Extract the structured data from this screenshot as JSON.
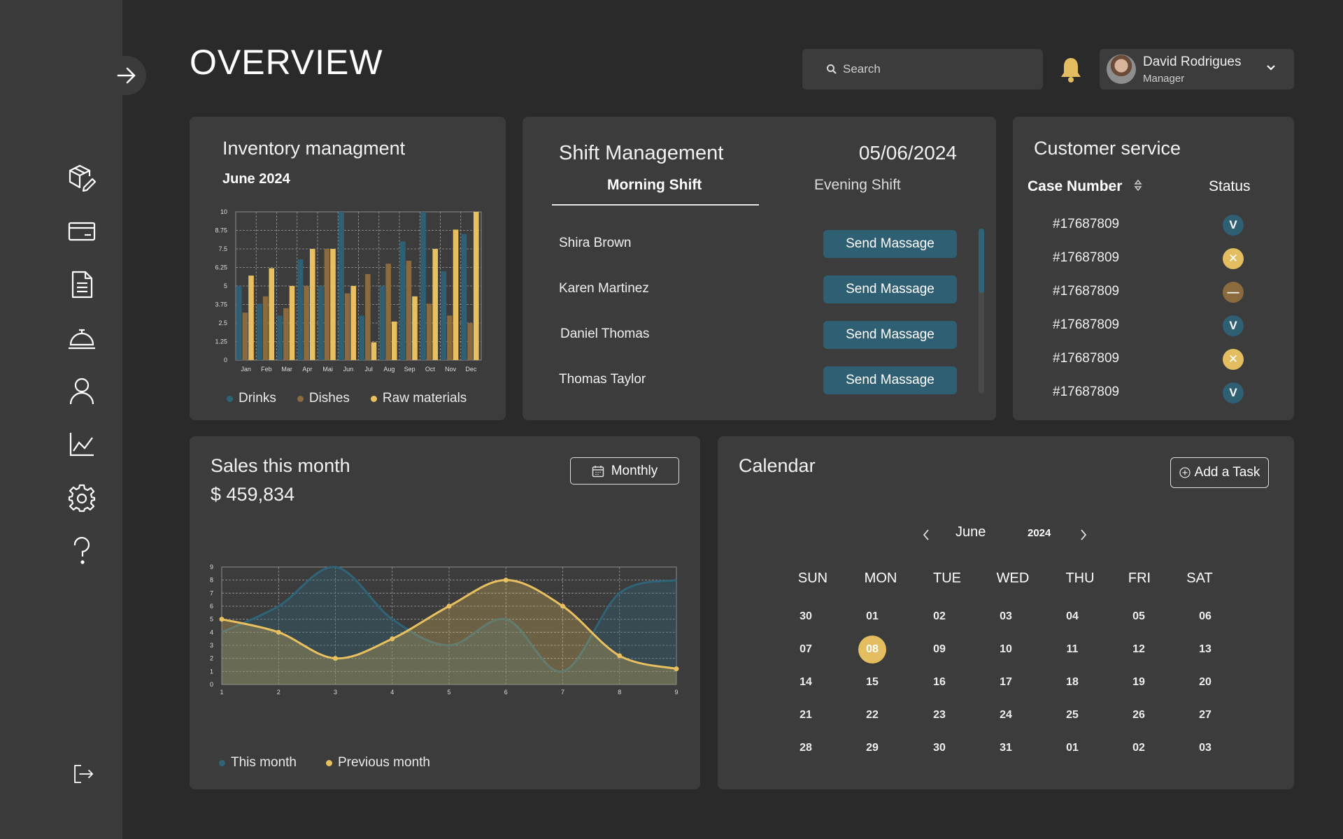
{
  "header": {
    "title": "OVERVIEW",
    "search_placeholder": "Search",
    "user": {
      "name": "David Rodrigues",
      "role": "Manager"
    }
  },
  "sidebar": {
    "items": [
      "inventory-icon",
      "card-icon",
      "document-icon",
      "service-bell-icon",
      "user-icon",
      "chart-icon",
      "settings-icon",
      "help-icon"
    ],
    "logout": "logout-icon"
  },
  "colors": {
    "drinks": "#2f5f73",
    "dishes": "#8b6a3e",
    "raw": "#e8c05f",
    "accent": "#e3bd5f",
    "teal": "#2f6478"
  },
  "inventory": {
    "title": "Inventory managment",
    "subtitle": "June 2024",
    "legend": [
      "Drinks",
      "Dishes",
      "Raw materials"
    ]
  },
  "shift": {
    "title": "Shift Management",
    "date": "05/06/2024",
    "tabs": [
      "Morning Shift",
      "Evening Shift"
    ],
    "staff": [
      {
        "name": "Shira Brown",
        "action": "Send Massage"
      },
      {
        "name": "Karen Martinez",
        "action": "Send Massage"
      },
      {
        "name": "Daniel Thomas",
        "action": "Send Massage"
      },
      {
        "name": "Thomas Taylor",
        "action": "Send Massage"
      }
    ]
  },
  "customer_service": {
    "title": "Customer service",
    "columns": [
      "Case Number",
      "Status"
    ],
    "cases": [
      {
        "number": "#17687809",
        "status": "done"
      },
      {
        "number": "#17687809",
        "status": "rejected"
      },
      {
        "number": "#17687809",
        "status": "pending"
      },
      {
        "number": "#17687809",
        "status": "done"
      },
      {
        "number": "#17687809",
        "status": "rejected"
      },
      {
        "number": "#17687809",
        "status": "done"
      }
    ],
    "status_glyphs": {
      "done": "V",
      "rejected": "✕",
      "pending": "—"
    }
  },
  "sales": {
    "title": "Sales this month",
    "amount": "$ 459,834",
    "period_button": "Monthly",
    "legend": [
      "This month",
      "Previous month"
    ]
  },
  "calendar": {
    "title": "Calendar",
    "add_task": "Add a Task",
    "month": "June",
    "year": "2024",
    "weekdays": [
      "SUN",
      "MON",
      "TUE",
      "WED",
      "THU",
      "FRI",
      "SAT"
    ],
    "weeks": [
      [
        "30",
        "01",
        "02",
        "03",
        "04",
        "05",
        "06"
      ],
      [
        "07",
        "08",
        "09",
        "10",
        "11",
        "12",
        "13"
      ],
      [
        "14",
        "15",
        "16",
        "17",
        "18",
        "19",
        "20"
      ],
      [
        "21",
        "22",
        "23",
        "24",
        "25",
        "26",
        "27"
      ],
      [
        "28",
        "29",
        "30",
        "31",
        "01",
        "02",
        "03"
      ]
    ],
    "selected_day": "08"
  },
  "chart_data": [
    {
      "type": "bar",
      "categories": [
        "Jan",
        "Feb",
        "Mar",
        "Apr",
        "Mai",
        "Jun",
        "Jul",
        "Aug",
        "Sep",
        "Oct",
        "Nov",
        "Dec"
      ],
      "series": [
        {
          "name": "Drinks",
          "values": [
            5,
            3.8,
            3,
            6.8,
            5,
            10,
            3,
            5,
            8,
            10,
            6,
            8.5
          ]
        },
        {
          "name": "Dishes",
          "values": [
            3.2,
            4.3,
            3.5,
            5,
            7.5,
            4.5,
            5.8,
            6.5,
            6.7,
            3.8,
            3,
            2.5
          ]
        },
        {
          "name": "Raw materials",
          "values": [
            5.7,
            6.2,
            5,
            7.5,
            7.5,
            5,
            1.2,
            2.6,
            4.3,
            7.5,
            8.8,
            10
          ]
        }
      ],
      "yticks": [
        "0",
        "1.25",
        "2.5",
        "3.75",
        "5",
        "6.25",
        "7.5",
        "8.75",
        "10"
      ],
      "ylim": [
        0,
        10
      ],
      "grid": true,
      "legend": "bottom"
    },
    {
      "type": "area",
      "x": [
        1,
        2,
        3,
        4,
        5,
        6,
        7,
        8,
        9
      ],
      "series": [
        {
          "name": "This month",
          "values": [
            4,
            6,
            9,
            5,
            3,
            5,
            1,
            7,
            8
          ]
        },
        {
          "name": "Previous month",
          "values": [
            5,
            4,
            2,
            3.5,
            6,
            8,
            6,
            2.2,
            1.2
          ]
        }
      ],
      "yticks": [
        "0",
        "1",
        "2",
        "3",
        "4",
        "5",
        "6",
        "7",
        "8",
        "9"
      ],
      "ylim": [
        0,
        9
      ],
      "xlim": [
        1,
        9
      ],
      "grid": true,
      "legend": "bottom"
    }
  ]
}
